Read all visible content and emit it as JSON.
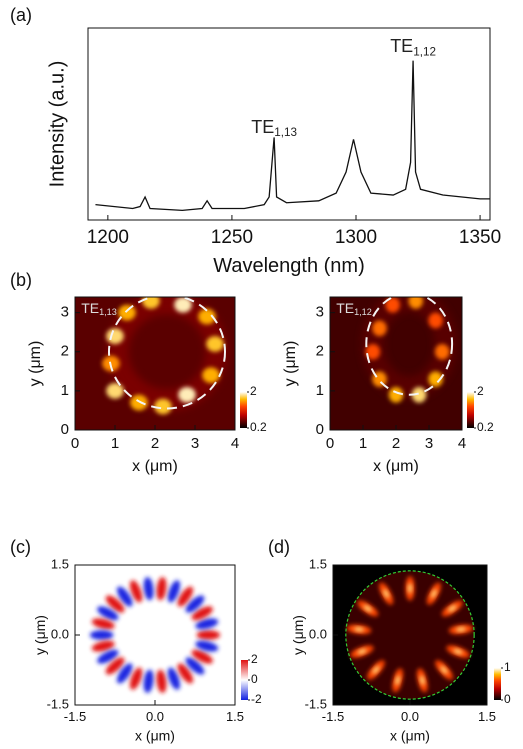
{
  "chart_data": [
    {
      "type": "line",
      "panel": "(a)",
      "x_label": "Wavelength (nm)",
      "y_label": "Intensity (a.u.)",
      "xlim": [
        1192,
        1354
      ],
      "ylim": [
        0,
        1
      ],
      "xticks": [
        1200,
        1250,
        1300,
        1350
      ],
      "color": "#111111",
      "x": [
        1195,
        1210,
        1213,
        1215,
        1217,
        1230,
        1238,
        1240,
        1242,
        1255,
        1263,
        1265,
        1267,
        1268,
        1272,
        1285,
        1292,
        1296,
        1299,
        1302,
        1306,
        1315,
        1320,
        1322,
        1323,
        1324,
        1326,
        1335,
        1350,
        1354
      ],
      "values": [
        0.08,
        0.06,
        0.07,
        0.12,
        0.06,
        0.05,
        0.06,
        0.1,
        0.06,
        0.06,
        0.08,
        0.12,
        0.43,
        0.12,
        0.09,
        0.1,
        0.14,
        0.25,
        0.42,
        0.25,
        0.14,
        0.13,
        0.16,
        0.3,
        0.83,
        0.25,
        0.16,
        0.13,
        0.11,
        0.11
      ],
      "annotations": [
        {
          "text": "TE",
          "sub": "1,13",
          "x": 1267,
          "y": 0.48
        },
        {
          "text": "TE",
          "sub": "1,12",
          "x": 1323,
          "y": 0.9
        }
      ]
    },
    {
      "type": "heatmap",
      "panel": "(b)",
      "label": {
        "text": "TE",
        "sub": "1,13"
      },
      "x_label": "x (μm)",
      "y_label": "y (μm)",
      "xlim": [
        0,
        4
      ],
      "ylim": [
        0,
        3.4
      ],
      "xticks": [
        0,
        1,
        2,
        3,
        4
      ],
      "yticks": [
        0,
        1,
        2,
        3
      ],
      "clim": [
        0.2,
        2
      ],
      "cbar_ticks": [
        2,
        0.2
      ],
      "background": 0.75,
      "circle": {
        "cx": 2.3,
        "cy": 2.0,
        "r": 1.45
      },
      "spots": [
        {
          "x": 1.0,
          "y": 2.4,
          "v": 1.8
        },
        {
          "x": 1.3,
          "y": 3.0,
          "v": 1.6
        },
        {
          "x": 1.9,
          "y": 3.3,
          "v": 1.7
        },
        {
          "x": 2.7,
          "y": 3.2,
          "v": 1.9
        },
        {
          "x": 3.3,
          "y": 2.9,
          "v": 1.6
        },
        {
          "x": 3.5,
          "y": 2.2,
          "v": 1.7
        },
        {
          "x": 3.4,
          "y": 1.4,
          "v": 1.6
        },
        {
          "x": 2.8,
          "y": 0.9,
          "v": 1.9
        },
        {
          "x": 2.2,
          "y": 0.6,
          "v": 1.7
        },
        {
          "x": 1.6,
          "y": 0.7,
          "v": 1.6
        },
        {
          "x": 1.0,
          "y": 1.0,
          "v": 1.8
        },
        {
          "x": 0.9,
          "y": 1.7,
          "v": 1.5
        }
      ]
    },
    {
      "type": "heatmap",
      "label": {
        "text": "TE",
        "sub": "1,12"
      },
      "x_label": "x (μm)",
      "y_label": "y (μm)",
      "xlim": [
        0,
        4
      ],
      "ylim": [
        0,
        3.4
      ],
      "xticks": [
        0,
        1,
        2,
        3,
        4
      ],
      "yticks": [
        0,
        1,
        2,
        3
      ],
      "clim": [
        0.2,
        2
      ],
      "cbar_ticks": [
        2,
        0.2
      ],
      "background": 0.6,
      "circle": {
        "cx": 2.4,
        "cy": 2.2,
        "r": 1.3
      },
      "spots": [
        {
          "x": 1.5,
          "y": 2.6,
          "v": 1.4
        },
        {
          "x": 1.9,
          "y": 3.2,
          "v": 1.3
        },
        {
          "x": 2.6,
          "y": 3.3,
          "v": 1.5
        },
        {
          "x": 3.2,
          "y": 2.8,
          "v": 1.3
        },
        {
          "x": 3.4,
          "y": 2.0,
          "v": 1.4
        },
        {
          "x": 3.2,
          "y": 1.3,
          "v": 1.6
        },
        {
          "x": 2.7,
          "y": 0.9,
          "v": 1.8
        },
        {
          "x": 2.0,
          "y": 0.9,
          "v": 1.6
        },
        {
          "x": 1.5,
          "y": 1.3,
          "v": 1.5
        },
        {
          "x": 1.3,
          "y": 2.0,
          "v": 1.3
        }
      ]
    },
    {
      "type": "field_map",
      "panel": "(c)",
      "x_label": "x (μm)",
      "y_label": "y (μm)",
      "xlim": [
        -1.5,
        1.5
      ],
      "ylim": [
        -1.5,
        1.5
      ],
      "xticks": [
        -1.5,
        {
          "value": 0,
          "label": "0.0"
        },
        1.5
      ],
      "yticks": [
        -1.5,
        {
          "value": 0,
          "label": "0.0"
        },
        1.5
      ],
      "clim": [
        -2,
        2
      ],
      "cbar_ticks": [
        2,
        0,
        -2
      ],
      "lobes": 26,
      "ring_radius": 1.0,
      "amplitude": 2
    },
    {
      "type": "intensity_map",
      "panel": "(d)",
      "x_label": "x (μm)",
      "y_label": "y (μm)",
      "xlim": [
        -1.5,
        1.5
      ],
      "ylim": [
        -1.5,
        1.5
      ],
      "xticks": [
        -1.5,
        {
          "value": 0,
          "label": "0.0"
        },
        1.5
      ],
      "yticks": [
        -1.5,
        {
          "value": 0,
          "label": "0.0"
        },
        1.5
      ],
      "clim": [
        0,
        1
      ],
      "cbar_ticks": [
        1,
        0
      ],
      "lobes": 13,
      "ring_radius": 1.0,
      "circle_radius": 1.25,
      "amplitude": 1
    }
  ]
}
